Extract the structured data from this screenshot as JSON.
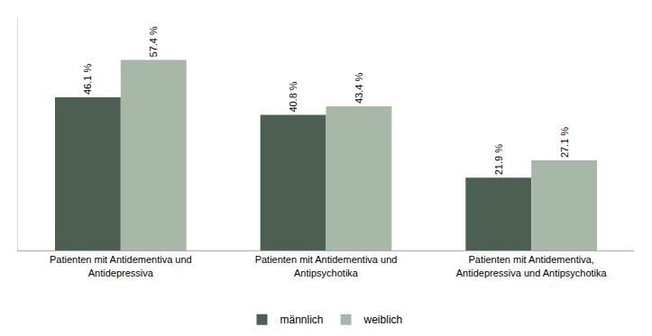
{
  "chart_data": {
    "type": "bar",
    "categories": [
      "Patienten mit Antidementiva und\nAntidepressiva",
      "Patienten mit Antidementiva und\nAntipsychotika",
      "Patienten mit Antidementiva,\nAntidepressiva und Antipsychotika"
    ],
    "series": [
      {
        "name": "männlich",
        "color": "#4d5e52",
        "values": [
          46.1,
          40.8,
          21.9
        ],
        "value_labels": [
          "46.1 %",
          "40.8 %",
          "21.9 %"
        ]
      },
      {
        "name": "weiblich",
        "color": "#a8b8a8",
        "values": [
          57.4,
          43.4,
          27.1
        ],
        "value_labels": [
          "57.4 %",
          "43.4 %",
          "27.1 %"
        ]
      }
    ],
    "ylim": [
      0,
      70
    ],
    "data_labels": true,
    "tick_labels": "x",
    "grid": false,
    "legend": "bottom"
  }
}
